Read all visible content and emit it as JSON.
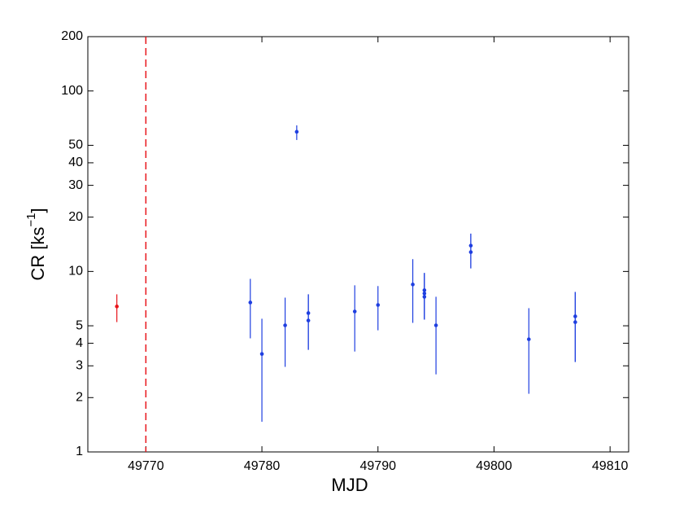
{
  "chart_data": {
    "type": "errorbar",
    "xlabel": "MJD",
    "ylabel": [
      "CR [ks",
      "−1",
      "]"
    ],
    "xlim": [
      49765,
      49811.6
    ],
    "xticks": [
      49770,
      49780,
      49790,
      49800,
      49810
    ],
    "ylim": [
      1,
      200
    ],
    "yticks": [
      1,
      2,
      3,
      4,
      5,
      10,
      20,
      30,
      40,
      50,
      100,
      200
    ],
    "yscale": "log",
    "vlines": [
      {
        "x": 49770,
        "color": "#e8141a",
        "style": "dashed"
      }
    ],
    "series": [
      {
        "color": "#e8141a",
        "x": [
          49767.5
        ],
        "values": [
          6.4
        ],
        "low": [
          5.24
        ],
        "high": [
          7.47
        ]
      },
      {
        "color": "#1f3fe0",
        "x": [
          49779,
          49780,
          49782,
          49783,
          49784,
          49784,
          49788,
          49790,
          49793,
          49794,
          49794,
          49794,
          49795,
          49798,
          49798,
          49803,
          49807,
          49807
        ],
        "values": [
          6.73,
          3.49,
          5.03,
          59.4,
          5.88,
          5.35,
          6.0,
          6.52,
          8.47,
          7.87,
          7.55,
          7.24,
          5.03,
          13.9,
          12.8,
          4.21,
          5.64,
          5.24
        ],
        "low": [
          4.26,
          1.47,
          2.96,
          53.5,
          3.68,
          3.68,
          3.6,
          4.72,
          5.19,
          5.41,
          5.41,
          5.41,
          2.69,
          10.4,
          10.4,
          2.1,
          3.15,
          3.15
        ],
        "high": [
          9.1,
          5.47,
          7.16,
          64.5,
          7.47,
          7.47,
          8.38,
          8.3,
          11.7,
          9.8,
          9.8,
          9.8,
          7.24,
          16.2,
          16.2,
          6.26,
          7.7,
          7.7
        ]
      }
    ]
  }
}
